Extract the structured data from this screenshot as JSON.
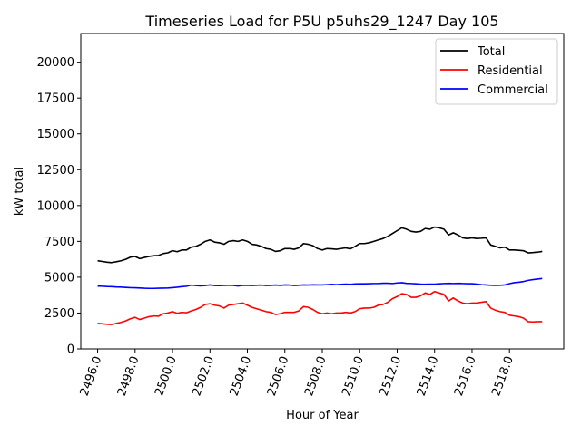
{
  "chart_data": {
    "type": "line",
    "title": "Timeseries Load for P5U p5uhs29_1247  Day 105",
    "xlabel": "Hour of Year",
    "ylabel": "kW total",
    "xlim": [
      2495.1,
      2520.9
    ],
    "ylim": [
      0,
      22000
    ],
    "xticks": [
      2496,
      2498,
      2500,
      2502,
      2504,
      2506,
      2508,
      2510,
      2512,
      2514,
      2516,
      2518
    ],
    "xtick_labels": [
      "2496.0",
      "2498.0",
      "2500.0",
      "2502.0",
      "2504.0",
      "2506.0",
      "2508.0",
      "2510.0",
      "2512.0",
      "2514.0",
      "2516.0",
      "2518.0"
    ],
    "yticks": [
      0,
      2500,
      5000,
      7500,
      10000,
      12500,
      15000,
      17500,
      20000
    ],
    "ytick_labels": [
      "0",
      "2500",
      "5000",
      "7500",
      "10000",
      "12500",
      "15000",
      "17500",
      "20000"
    ],
    "legend_position": "top-right",
    "x": [
      2496.0,
      2496.25,
      2496.5,
      2496.75,
      2497.0,
      2497.25,
      2497.5,
      2497.75,
      2498.0,
      2498.25,
      2498.5,
      2498.75,
      2499.0,
      2499.25,
      2499.5,
      2499.75,
      2500.0,
      2500.25,
      2500.5,
      2500.75,
      2501.0,
      2501.25,
      2501.5,
      2501.75,
      2502.0,
      2502.25,
      2502.5,
      2502.75,
      2503.0,
      2503.25,
      2503.5,
      2503.75,
      2504.0,
      2504.25,
      2504.5,
      2504.75,
      2505.0,
      2505.25,
      2505.5,
      2505.75,
      2506.0,
      2506.25,
      2506.5,
      2506.75,
      2507.0,
      2507.25,
      2507.5,
      2507.75,
      2508.0,
      2508.25,
      2508.5,
      2508.75,
      2509.0,
      2509.25,
      2509.5,
      2509.75,
      2510.0,
      2510.25,
      2510.5,
      2510.75,
      2511.0,
      2511.25,
      2511.5,
      2511.75,
      2512.0,
      2512.25,
      2512.5,
      2512.75,
      2513.0,
      2513.25,
      2513.5,
      2513.75,
      2514.0,
      2514.25,
      2514.5,
      2514.75,
      2515.0,
      2515.25,
      2515.5,
      2515.75,
      2516.0,
      2516.25,
      2516.5,
      2516.75,
      2517.0,
      2517.25,
      2517.5,
      2517.75,
      2518.0,
      2518.25,
      2518.5,
      2518.75,
      2519.0,
      2519.25,
      2519.5,
      2519.75
    ],
    "series": [
      {
        "name": "Total",
        "color": "#000000",
        "values": [
          6150,
          6100,
          6050,
          6020,
          6080,
          6150,
          6250,
          6400,
          6450,
          6300,
          6380,
          6450,
          6500,
          6520,
          6650,
          6700,
          6850,
          6780,
          6900,
          6900,
          7100,
          7150,
          7300,
          7500,
          7600,
          7450,
          7400,
          7300,
          7500,
          7550,
          7500,
          7600,
          7500,
          7300,
          7250,
          7150,
          7000,
          6950,
          6800,
          6850,
          7000,
          7000,
          6950,
          7050,
          7350,
          7300,
          7200,
          7000,
          6900,
          7000,
          6980,
          6950,
          7000,
          7050,
          6980,
          7150,
          7350,
          7350,
          7400,
          7500,
          7600,
          7700,
          7850,
          8050,
          8250,
          8450,
          8350,
          8200,
          8150,
          8200,
          8400,
          8350,
          8500,
          8450,
          8350,
          7950,
          8100,
          7950,
          7750,
          7700,
          7750,
          7700,
          7720,
          7750,
          7250,
          7150,
          7050,
          7100,
          6900,
          6900,
          6880,
          6850,
          6700,
          6720,
          6750,
          6800
        ]
      },
      {
        "name": "Residential",
        "color": "#ff0000",
        "values": [
          1780,
          1750,
          1720,
          1700,
          1780,
          1850,
          1950,
          2100,
          2200,
          2050,
          2150,
          2250,
          2300,
          2280,
          2450,
          2500,
          2600,
          2480,
          2550,
          2520,
          2650,
          2750,
          2900,
          3100,
          3150,
          3050,
          3000,
          2850,
          3050,
          3100,
          3150,
          3200,
          3050,
          2900,
          2800,
          2700,
          2600,
          2550,
          2400,
          2450,
          2550,
          2550,
          2550,
          2650,
          2950,
          2900,
          2750,
          2550,
          2450,
          2500,
          2450,
          2500,
          2500,
          2550,
          2500,
          2600,
          2800,
          2850,
          2850,
          2900,
          3050,
          3100,
          3250,
          3500,
          3650,
          3850,
          3800,
          3600,
          3600,
          3700,
          3900,
          3800,
          4000,
          3900,
          3800,
          3350,
          3550,
          3350,
          3200,
          3150,
          3200,
          3200,
          3250,
          3300,
          2850,
          2700,
          2600,
          2550,
          2350,
          2300,
          2250,
          2150,
          1900,
          1880,
          1900,
          1900
        ]
      },
      {
        "name": "Commercial",
        "color": "#0000ff",
        "values": [
          4380,
          4370,
          4350,
          4340,
          4320,
          4310,
          4290,
          4270,
          4260,
          4250,
          4230,
          4220,
          4220,
          4230,
          4240,
          4250,
          4270,
          4300,
          4340,
          4370,
          4450,
          4420,
          4400,
          4420,
          4460,
          4420,
          4410,
          4430,
          4440,
          4430,
          4390,
          4430,
          4440,
          4420,
          4440,
          4450,
          4420,
          4430,
          4450,
          4430,
          4460,
          4450,
          4420,
          4440,
          4460,
          4450,
          4470,
          4460,
          4460,
          4480,
          4500,
          4480,
          4500,
          4520,
          4500,
          4530,
          4540,
          4540,
          4550,
          4560,
          4560,
          4580,
          4580,
          4560,
          4600,
          4620,
          4570,
          4560,
          4540,
          4520,
          4510,
          4520,
          4520,
          4540,
          4560,
          4570,
          4560,
          4570,
          4560,
          4550,
          4550,
          4520,
          4480,
          4460,
          4440,
          4430,
          4440,
          4460,
          4550,
          4620,
          4650,
          4700,
          4780,
          4830,
          4870,
          4910
        ]
      }
    ]
  }
}
